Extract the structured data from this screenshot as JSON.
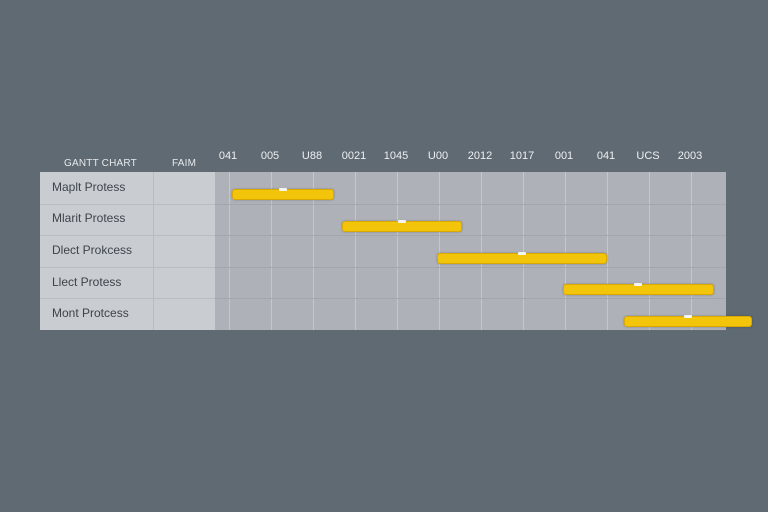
{
  "header": {
    "title": "GANTT CHART",
    "column_label": "FAIM"
  },
  "chart_data": {
    "type": "gantt",
    "ticks": [
      "041",
      "005",
      "U88",
      "0021",
      "1045",
      "U00",
      "2012",
      "1017",
      "001",
      "041",
      "UCS",
      "2003"
    ],
    "tasks": [
      {
        "name": "Maplt Protess",
        "start": 0.06,
        "end": 2.45
      },
      {
        "name": "Mlarit Protess",
        "start": 2.7,
        "end": 5.5
      },
      {
        "name": "Dlect Prokcess",
        "start": 4.95,
        "end": 8.95
      },
      {
        "name": "Llect Protess",
        "start": 7.95,
        "end": 11.5
      },
      {
        "name": "Mont Protcess",
        "start": 9.4,
        "end": 12.4
      }
    ],
    "colors": {
      "bar": "#f2c40a",
      "bar_border": "#d9a900",
      "background": "#5f6a73",
      "plot": "#aeb2b8",
      "labels_panel": "#c9ccd0"
    }
  }
}
